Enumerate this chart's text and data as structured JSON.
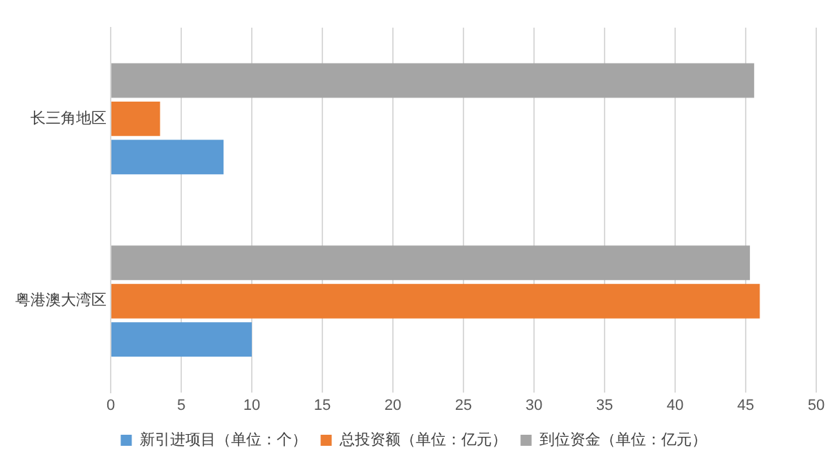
{
  "chart_data": {
    "type": "bar",
    "orientation": "horizontal",
    "categories": [
      "长三角地区",
      "粤港澳大湾区"
    ],
    "series": [
      {
        "name": "新引进项目（单位：个）",
        "color": "#5b9bd5",
        "values": [
          8,
          10
        ]
      },
      {
        "name": "总投资额（单位：亿元）",
        "color": "#ed7d31",
        "values": [
          3.5,
          46
        ]
      },
      {
        "name": "到位资金（单位：亿元）",
        "color": "#a5a5a5",
        "values": [
          45.6,
          45.3
        ]
      }
    ],
    "xlim": [
      0,
      50
    ],
    "xticks": [
      0,
      5,
      10,
      15,
      20,
      25,
      30,
      35,
      40,
      45,
      50
    ],
    "grid": "x",
    "legend": "bottom"
  }
}
